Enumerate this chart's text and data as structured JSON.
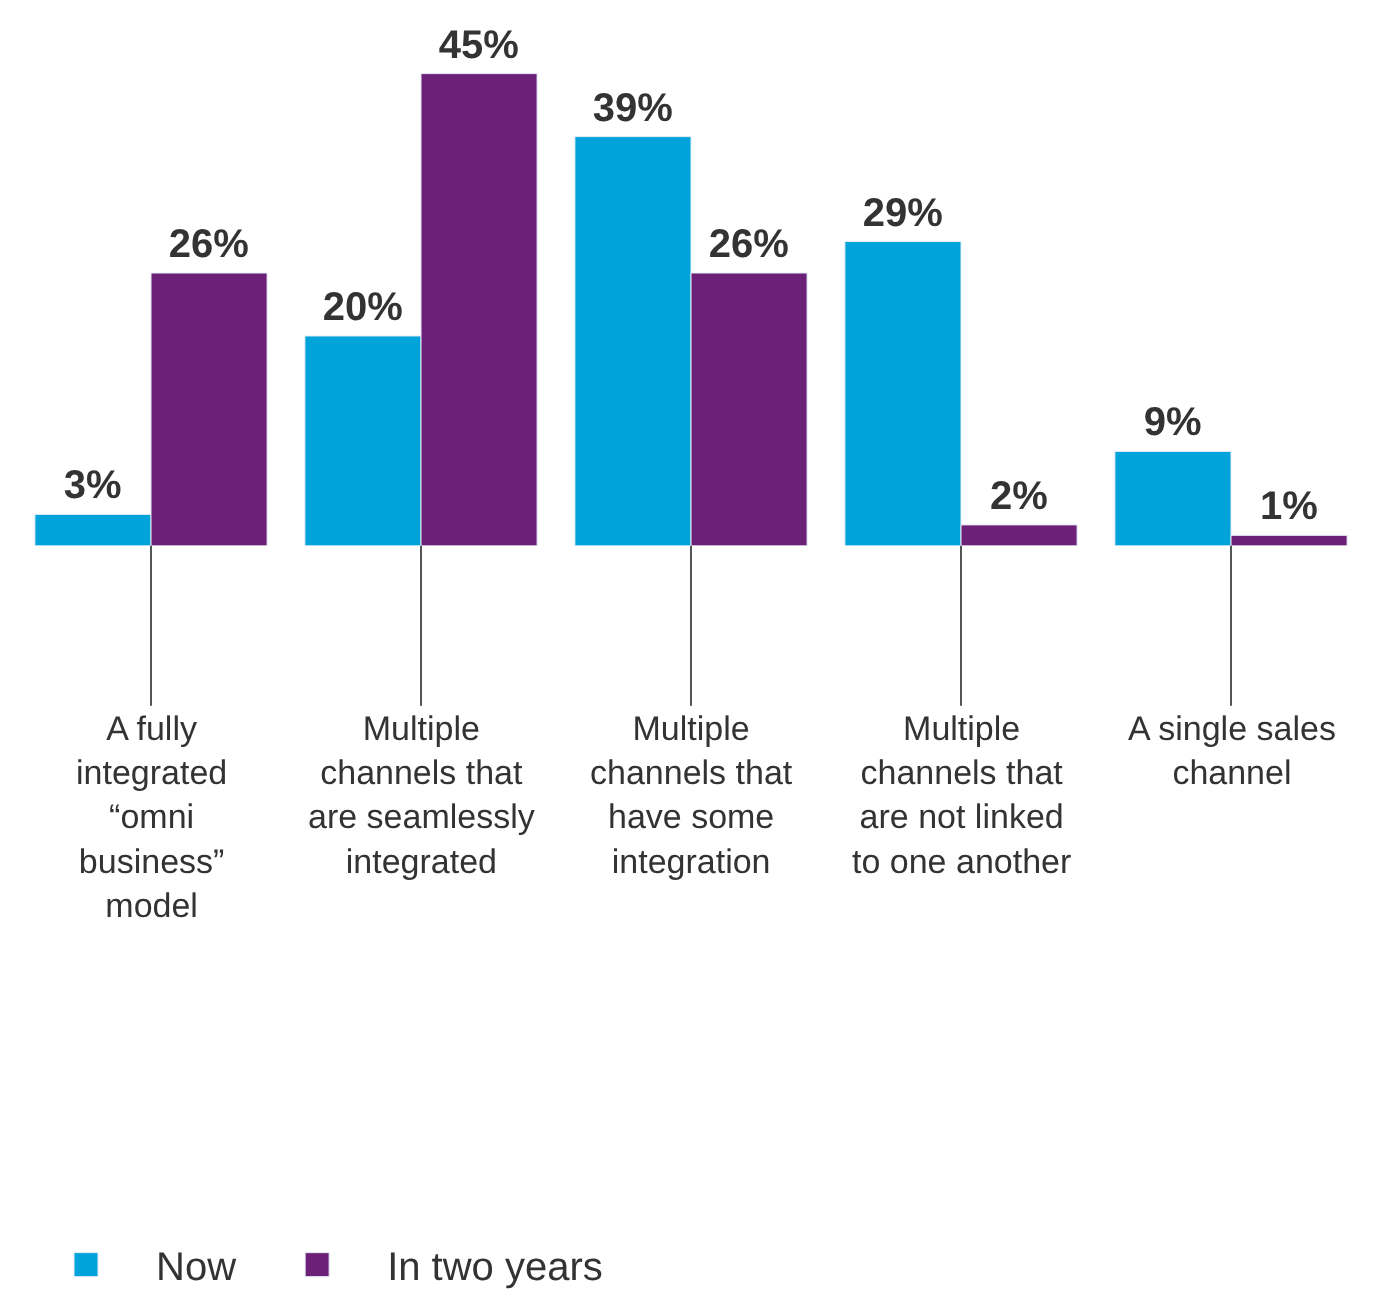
{
  "chart_data": {
    "type": "bar",
    "legend": "bottom left",
    "categories": [
      "A fully integrated “omni business” model",
      "Multiple channels that are seamlessly integrated",
      "Multiple channels that have some integration",
      "Multiple channels that are not linked to one another",
      "A single sales channel"
    ],
    "series": [
      {
        "name": "Now",
        "color": "#00a3da",
        "values": [
          3,
          20,
          39,
          29,
          9
        ],
        "value_labels": [
          "3%",
          "20%",
          "39%",
          "29%",
          "9%"
        ]
      },
      {
        "name": "In two years",
        "color": "#6d2077",
        "values": [
          26,
          45,
          26,
          2,
          1
        ],
        "value_labels": [
          "26%",
          "45%",
          "26%",
          "2%",
          "1%"
        ]
      }
    ]
  }
}
